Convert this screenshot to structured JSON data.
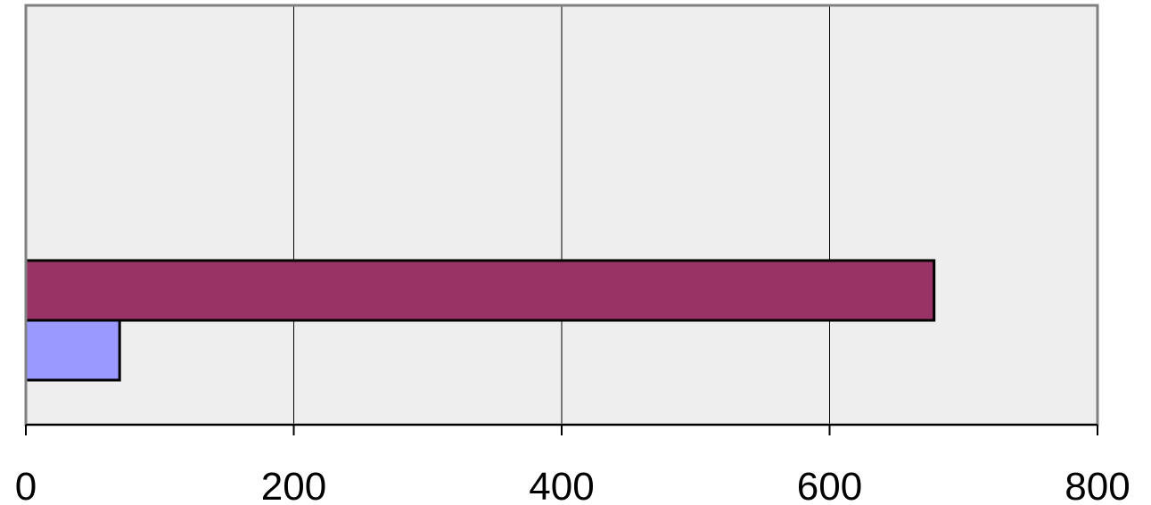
{
  "chart_data": {
    "type": "bar",
    "orientation": "horizontal",
    "series": [
      {
        "values": [
          678
        ],
        "color": "#993366"
      },
      {
        "values": [
          70
        ],
        "color": "#9999ff"
      }
    ],
    "xlim": [
      0,
      800
    ],
    "x_ticks": [
      "0",
      "200",
      "400",
      "600",
      "800"
    ],
    "grid": "vertical",
    "plot_background": "#eeeeee",
    "frame_color": "#808080",
    "title": "",
    "xlabel": "",
    "ylabel": ""
  }
}
